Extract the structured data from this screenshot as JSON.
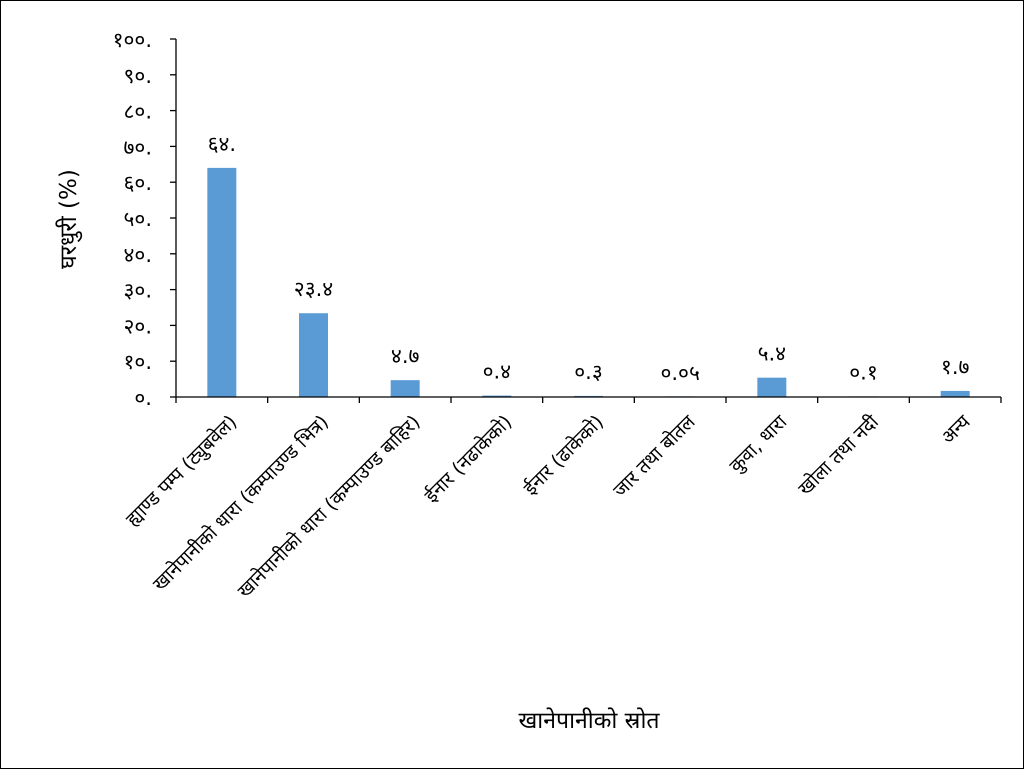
{
  "chart_data": {
    "type": "bar",
    "xlabel": "खानेपानीको स्रोत",
    "ylabel": "घरधुरी (%)",
    "ylim": [
      0,
      100
    ],
    "yticks": [
      0,
      10,
      20,
      30,
      40,
      50,
      60,
      70,
      80,
      90,
      100
    ],
    "ytick_labels": [
      "०.",
      "१०.",
      "२०.",
      "३०.",
      "४०.",
      "५०.",
      "६०.",
      "७०.",
      "८०.",
      "९०.",
      "१००."
    ],
    "grid": false,
    "legend": "none",
    "bar_color": "#5B9BD5",
    "categories": [
      "ह्याण्ड पम्प (ट्युबवेल)",
      "खानेपानीको धारा (कम्पाउण्ड भित्र)",
      "खानेपानीको धारा (कम्पाउण्ड बाहिर)",
      "ईनार (नढाकेको)",
      "ईनार (ढाकेको)",
      "जार तथा बोतल",
      "कुवा, धारा",
      "खोला तथा नदी",
      "अन्य"
    ],
    "values": [
      64.0,
      23.4,
      4.7,
      0.4,
      0.3,
      0.05,
      5.4,
      0.1,
      1.7
    ],
    "data_labels": [
      "६४.",
      "२३.४",
      "४.७",
      "०.४",
      "०.३",
      "०.०५",
      "५.४",
      "०.१",
      "१.७"
    ]
  }
}
